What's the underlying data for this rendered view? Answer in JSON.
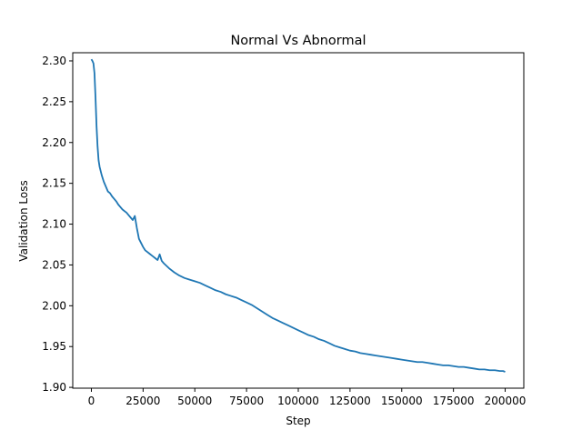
{
  "chart_data": {
    "type": "line",
    "title": "Normal Vs Abnormal",
    "xlabel": "Step",
    "ylabel": "Validation Loss",
    "xlim": [
      -9000,
      209000
    ],
    "ylim": [
      1.899,
      2.31
    ],
    "x_ticks": [
      0,
      25000,
      50000,
      75000,
      100000,
      125000,
      150000,
      175000,
      200000
    ],
    "x_tick_labels": [
      "0",
      "25000",
      "50000",
      "75000",
      "100000",
      "125000",
      "150000",
      "175000",
      "200000"
    ],
    "y_ticks": [
      1.9,
      1.95,
      2.0,
      2.05,
      2.1,
      2.15,
      2.2,
      2.25,
      2.3
    ],
    "y_tick_labels": [
      "1.90",
      "1.95",
      "2.00",
      "2.05",
      "2.10",
      "2.15",
      "2.20",
      "2.25",
      "2.30"
    ],
    "grid": false,
    "legend": "none",
    "line_color": "#1f77b4",
    "series": [
      {
        "x": [
          0,
          500,
          1000,
          1500,
          2000,
          2500,
          3000,
          3500,
          4000,
          5000,
          6000,
          7000,
          8000,
          9000,
          10000,
          11000,
          12000,
          13000,
          14000,
          15000,
          16000,
          17000,
          18000,
          19000,
          20000,
          21000,
          22000,
          23000,
          24000,
          25000,
          26000,
          27000,
          28000,
          29000,
          30000,
          31000,
          32000,
          33000,
          34000,
          35000,
          37500,
          40000,
          42500,
          45000,
          47500,
          50000,
          52500,
          55000,
          57500,
          60000,
          62500,
          65000,
          67500,
          70000,
          72500,
          75000,
          77500,
          80000,
          82500,
          85000,
          87500,
          90000,
          92500,
          95000,
          97500,
          100000,
          102500,
          105000,
          107500,
          110000,
          112500,
          115000,
          117500,
          120000,
          122500,
          125000,
          127500,
          130000,
          132500,
          135000,
          137500,
          140000,
          142500,
          145000,
          147500,
          150000,
          152500,
          155000,
          157500,
          160000,
          162500,
          165000,
          167500,
          170000,
          172500,
          175000,
          177500,
          180000,
          182500,
          185000,
          187500,
          190000,
          192500,
          195000,
          197500,
          199000,
          200000
        ],
        "y": [
          2.302,
          2.3,
          2.297,
          2.285,
          2.255,
          2.22,
          2.195,
          2.178,
          2.17,
          2.16,
          2.152,
          2.146,
          2.14,
          2.138,
          2.134,
          2.131,
          2.128,
          2.124,
          2.121,
          2.118,
          2.116,
          2.114,
          2.111,
          2.108,
          2.105,
          2.11,
          2.095,
          2.082,
          2.077,
          2.072,
          2.068,
          2.066,
          2.064,
          2.062,
          2.06,
          2.058,
          2.056,
          2.063,
          2.055,
          2.052,
          2.046,
          2.041,
          2.037,
          2.034,
          2.032,
          2.03,
          2.028,
          2.025,
          2.022,
          2.019,
          2.017,
          2.014,
          2.012,
          2.01,
          2.007,
          2.004,
          2.001,
          1.997,
          1.993,
          1.989,
          1.985,
          1.982,
          1.979,
          1.976,
          1.973,
          1.97,
          1.967,
          1.964,
          1.962,
          1.959,
          1.957,
          1.954,
          1.951,
          1.949,
          1.947,
          1.945,
          1.944,
          1.942,
          1.941,
          1.94,
          1.939,
          1.938,
          1.937,
          1.936,
          1.935,
          1.934,
          1.933,
          1.932,
          1.931,
          1.931,
          1.93,
          1.929,
          1.928,
          1.927,
          1.927,
          1.926,
          1.925,
          1.925,
          1.924,
          1.923,
          1.922,
          1.922,
          1.921,
          1.921,
          1.92,
          1.92,
          1.919
        ]
      }
    ]
  }
}
